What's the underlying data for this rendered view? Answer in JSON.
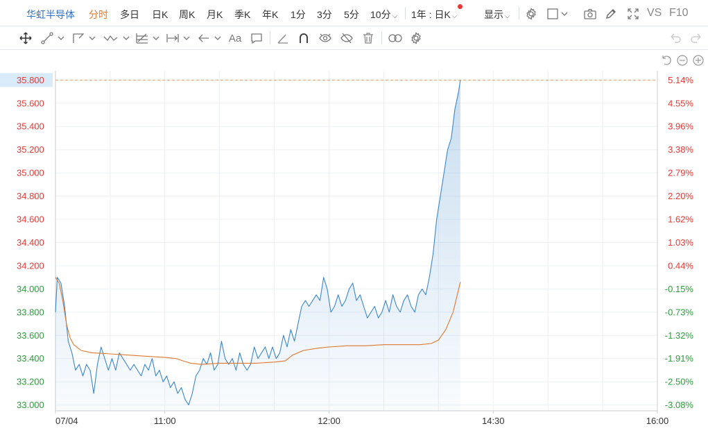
{
  "topbar": {
    "stock_name": "华虹半导体",
    "tabs": [
      "分时",
      "多日",
      "日K",
      "周K",
      "月K",
      "季K",
      "年K",
      "1分",
      "3分",
      "5分",
      "10分"
    ],
    "period_select": "1年 : 日K",
    "display_label": "显示",
    "vs_label": "VS",
    "f10_label": "F10"
  },
  "colors": {
    "price_line": "#3a86c8",
    "avg_line": "#e0772b",
    "up": "#e53935",
    "down": "#2e9b3c",
    "grid": "#edf0f5",
    "ref_line": "#e8a070",
    "tag_bg": "#d9eaf9"
  },
  "icons": {
    "toolbar": [
      "move-cross-icon",
      "line-segment-icon",
      "polygon-draw-icon",
      "wave-line-icon",
      "fibonacci-icon",
      "measure-range-icon",
      "arrow-left-icon",
      "text-tool-icon",
      "comment-icon",
      "ruler-angle-icon",
      "magnet-icon",
      "eye-toggle-icon",
      "hide-icon",
      "trash-icon",
      "link-icon",
      "gear-icon"
    ],
    "topbar_right": [
      "gear-icon",
      "window-icon",
      "camera-icon",
      "pencil-icon",
      "fullscreen-icon"
    ],
    "chart_corner": [
      "reset-icon",
      "zoom-out-icon",
      "zoom-in-icon"
    ]
  },
  "chart_data": {
    "type": "line",
    "date_label": "07/04",
    "x_ticks": [
      "11:00",
      "12:00",
      "14:30",
      "16:00"
    ],
    "prev_close": 34.05,
    "ylim": [
      32.95,
      35.82
    ],
    "y_ticks": [
      {
        "price": "35.800",
        "pct": "5.14%"
      },
      {
        "price": "35.600",
        "pct": "4.55%"
      },
      {
        "price": "35.400",
        "pct": "3.96%"
      },
      {
        "price": "35.200",
        "pct": "3.38%"
      },
      {
        "price": "35.000",
        "pct": "2.79%"
      },
      {
        "price": "34.800",
        "pct": "2.20%"
      },
      {
        "price": "34.600",
        "pct": "1.62%"
      },
      {
        "price": "34.400",
        "pct": "1.03%"
      },
      {
        "price": "34.200",
        "pct": "0.44%"
      },
      {
        "price": "34.000",
        "pct": "-0.15%"
      },
      {
        "price": "33.800",
        "pct": "-0.73%"
      },
      {
        "price": "33.600",
        "pct": "-1.32%"
      },
      {
        "price": "33.400",
        "pct": "-1.91%"
      },
      {
        "price": "33.200",
        "pct": "-2.50%"
      },
      {
        "price": "33.000",
        "pct": "-3.08%"
      }
    ],
    "highlight_price": 35.8,
    "session_minutes": 330,
    "price": [
      [
        0,
        33.8
      ],
      [
        1,
        34.1
      ],
      [
        3,
        34.05
      ],
      [
        5,
        33.85
      ],
      [
        7,
        33.55
      ],
      [
        9,
        33.45
      ],
      [
        11,
        33.3
      ],
      [
        13,
        33.35
      ],
      [
        15,
        33.25
      ],
      [
        17,
        33.35
      ],
      [
        19,
        33.3
      ],
      [
        21,
        33.1
      ],
      [
        23,
        33.35
      ],
      [
        25,
        33.5
      ],
      [
        27,
        33.4
      ],
      [
        29,
        33.3
      ],
      [
        31,
        33.4
      ],
      [
        33,
        33.3
      ],
      [
        35,
        33.45
      ],
      [
        37,
        33.4
      ],
      [
        39,
        33.35
      ],
      [
        41,
        33.3
      ],
      [
        43,
        33.35
      ],
      [
        45,
        33.3
      ],
      [
        47,
        33.25
      ],
      [
        49,
        33.35
      ],
      [
        51,
        33.3
      ],
      [
        53,
        33.4
      ],
      [
        55,
        33.25
      ],
      [
        57,
        33.3
      ],
      [
        59,
        33.2
      ],
      [
        61,
        33.25
      ],
      [
        63,
        33.15
      ],
      [
        65,
        33.2
      ],
      [
        67,
        33.1
      ],
      [
        69,
        33.15
      ],
      [
        71,
        33.05
      ],
      [
        73,
        33.0
      ],
      [
        75,
        33.1
      ],
      [
        77,
        33.25
      ],
      [
        79,
        33.3
      ],
      [
        81,
        33.4
      ],
      [
        83,
        33.35
      ],
      [
        85,
        33.45
      ],
      [
        87,
        33.3
      ],
      [
        89,
        33.35
      ],
      [
        91,
        33.55
      ],
      [
        93,
        33.4
      ],
      [
        95,
        33.35
      ],
      [
        97,
        33.4
      ],
      [
        99,
        33.3
      ],
      [
        101,
        33.45
      ],
      [
        103,
        33.35
      ],
      [
        105,
        33.3
      ],
      [
        107,
        33.35
      ],
      [
        109,
        33.5
      ],
      [
        111,
        33.4
      ],
      [
        113,
        33.45
      ],
      [
        115,
        33.5
      ],
      [
        117,
        33.4
      ],
      [
        119,
        33.5
      ],
      [
        121,
        33.4
      ],
      [
        123,
        33.45
      ],
      [
        125,
        33.6
      ],
      [
        127,
        33.5
      ],
      [
        129,
        33.65
      ],
      [
        131,
        33.55
      ],
      [
        133,
        33.7
      ],
      [
        135,
        33.85
      ],
      [
        137,
        33.9
      ],
      [
        139,
        33.85
      ],
      [
        141,
        33.9
      ],
      [
        143,
        33.95
      ],
      [
        145,
        33.9
      ],
      [
        147,
        34.1
      ],
      [
        149,
        34.0
      ],
      [
        151,
        33.8
      ],
      [
        153,
        33.85
      ],
      [
        155,
        33.95
      ],
      [
        157,
        33.85
      ],
      [
        159,
        33.9
      ],
      [
        161,
        34.0
      ],
      [
        163,
        34.05
      ],
      [
        165,
        33.9
      ],
      [
        167,
        33.95
      ],
      [
        169,
        33.85
      ],
      [
        171,
        33.75
      ],
      [
        173,
        33.8
      ],
      [
        175,
        33.85
      ],
      [
        177,
        33.75
      ],
      [
        179,
        33.8
      ],
      [
        181,
        33.9
      ],
      [
        183,
        33.8
      ],
      [
        185,
        33.95
      ],
      [
        187,
        33.85
      ],
      [
        189,
        33.8
      ],
      [
        191,
        33.9
      ],
      [
        193,
        33.95
      ],
      [
        195,
        33.85
      ],
      [
        197,
        33.8
      ],
      [
        199,
        33.95
      ],
      [
        201,
        34.0
      ],
      [
        203,
        33.95
      ],
      [
        205,
        34.1
      ],
      [
        207,
        34.3
      ],
      [
        209,
        34.6
      ],
      [
        211,
        34.8
      ],
      [
        213,
        35.0
      ],
      [
        215,
        35.2
      ],
      [
        217,
        35.3
      ],
      [
        219,
        35.55
      ],
      [
        221,
        35.7
      ],
      [
        222,
        35.8
      ]
    ],
    "avg": [
      [
        0,
        34.1
      ],
      [
        2,
        34.05
      ],
      [
        4,
        33.9
      ],
      [
        6,
        33.7
      ],
      [
        8,
        33.58
      ],
      [
        10,
        33.52
      ],
      [
        14,
        33.47
      ],
      [
        20,
        33.45
      ],
      [
        30,
        33.44
      ],
      [
        40,
        33.43
      ],
      [
        50,
        33.42
      ],
      [
        60,
        33.41
      ],
      [
        66,
        33.4
      ],
      [
        70,
        33.38
      ],
      [
        74,
        33.36
      ],
      [
        80,
        33.35
      ],
      [
        90,
        33.36
      ],
      [
        100,
        33.36
      ],
      [
        110,
        33.36
      ],
      [
        120,
        33.37
      ],
      [
        126,
        33.38
      ],
      [
        130,
        33.43
      ],
      [
        136,
        33.47
      ],
      [
        144,
        33.49
      ],
      [
        150,
        33.5
      ],
      [
        160,
        33.51
      ],
      [
        170,
        33.51
      ],
      [
        180,
        33.52
      ],
      [
        190,
        33.52
      ],
      [
        200,
        33.52
      ],
      [
        206,
        33.53
      ],
      [
        210,
        33.56
      ],
      [
        214,
        33.65
      ],
      [
        218,
        33.8
      ],
      [
        222,
        34.06
      ]
    ]
  }
}
